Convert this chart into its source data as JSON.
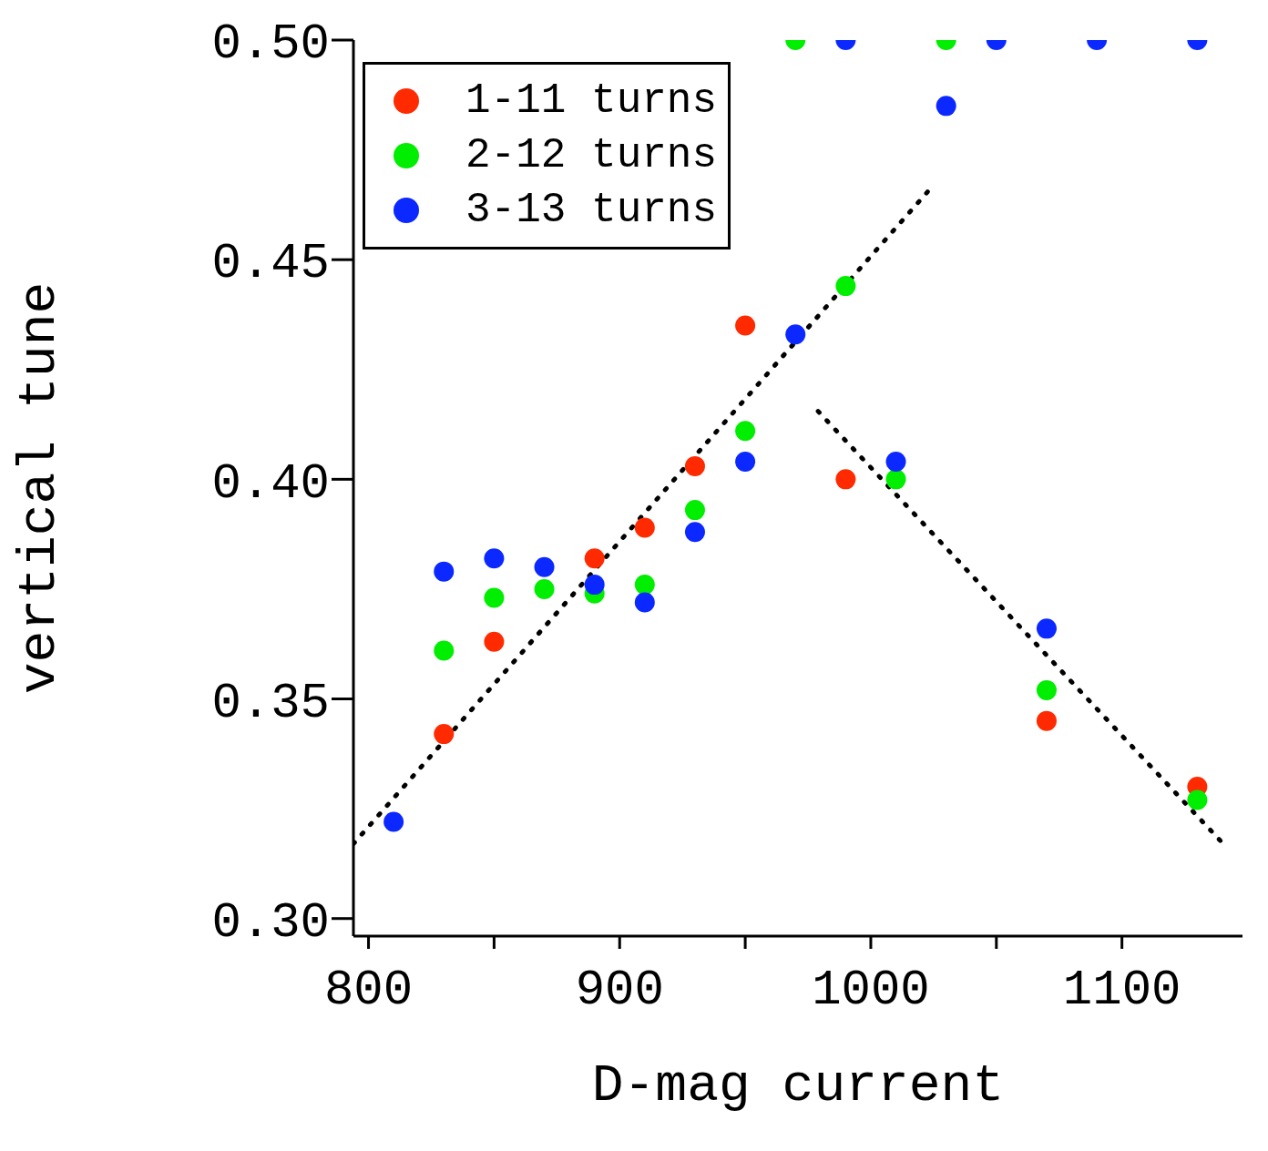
{
  "chart_data": {
    "type": "scatter",
    "xlabel": "D-mag current",
    "ylabel": "vertical tune",
    "xlim": [
      794,
      1148
    ],
    "xticks": [
      800,
      {
        "value": 850,
        "label": null
      },
      900,
      {
        "value": 950,
        "label": null
      },
      1000,
      {
        "value": 1050,
        "label": null
      },
      1100
    ],
    "ylim": [
      0.296,
      0.5
    ],
    "yticks": [
      {
        "value": 0.3,
        "label": "0.30"
      },
      {
        "value": 0.35,
        "label": "0.35"
      },
      {
        "value": 0.4,
        "label": "0.40"
      },
      {
        "value": 0.45,
        "label": "0.45"
      },
      {
        "value": 0.5,
        "label": "0.50"
      }
    ],
    "legend": "top left",
    "marker": "circle",
    "series": [
      {
        "name": "1-11 turns",
        "color": "#ff2a00",
        "x": [
          830,
          850,
          890,
          910,
          930,
          950,
          990,
          1070,
          1130
        ],
        "values": [
          0.342,
          0.363,
          0.382,
          0.389,
          0.403,
          0.435,
          0.4,
          0.345,
          0.33
        ]
      },
      {
        "name": "2-12 turns",
        "color": "#00ee00",
        "x": [
          830,
          850,
          870,
          890,
          910,
          930,
          950,
          970,
          990,
          1010,
          1030,
          1070,
          1130
        ],
        "values": [
          0.361,
          0.373,
          0.375,
          0.374,
          0.376,
          0.393,
          0.411,
          0.5,
          0.444,
          0.4,
          0.5,
          0.352,
          0.327
        ]
      },
      {
        "name": "3-13 turns",
        "color": "#0a28ff",
        "x": [
          810,
          830,
          850,
          870,
          890,
          910,
          930,
          950,
          970,
          990,
          1010,
          1030,
          1050,
          1070,
          1090,
          1130
        ],
        "values": [
          0.322,
          0.379,
          0.382,
          0.38,
          0.376,
          0.372,
          0.388,
          0.404,
          0.433,
          0.5,
          0.404,
          0.485,
          0.5,
          0.366,
          0.5,
          0.5
        ]
      },
      {
        "type": "line",
        "color": "#000000",
        "marker": "none",
        "line_style": "dotted",
        "x": [
          794,
          1025
        ],
        "values": [
          0.317,
          0.467
        ]
      },
      {
        "type": "line",
        "color": "#000000",
        "marker": "none",
        "line_style": "dotted",
        "x": [
          979,
          1142
        ],
        "values": [
          0.4155,
          0.316
        ]
      }
    ]
  }
}
